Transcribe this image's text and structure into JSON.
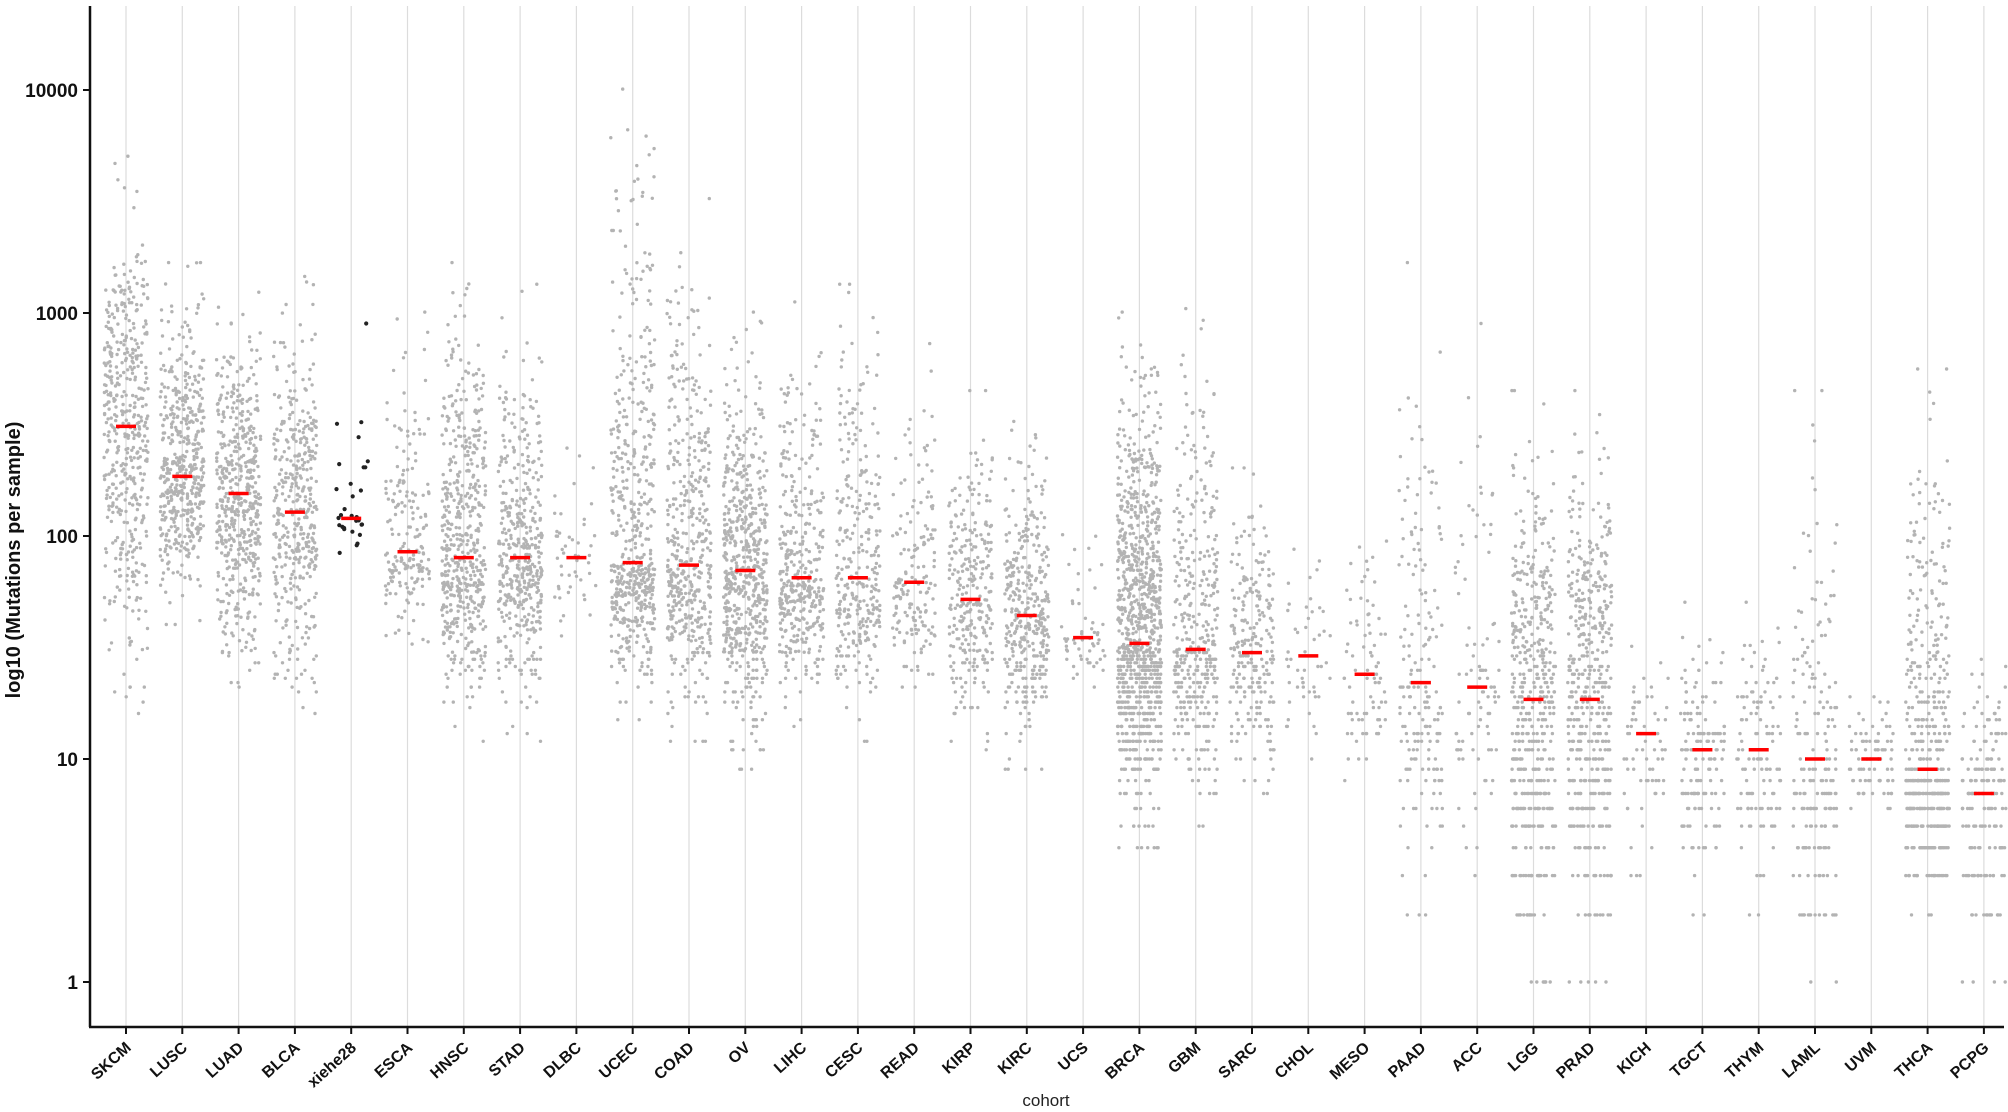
{
  "chart_data": {
    "type": "scatter",
    "title": "",
    "xlabel": "cohort",
    "ylabel": "log10 (Mutations per sample)",
    "y_scale": "log10",
    "ylim": [
      0.5,
      25000
    ],
    "y_ticks": [
      1,
      10,
      100,
      1000,
      10000
    ],
    "y_tick_labels": [
      "1",
      "10",
      "100",
      "1000",
      "10000"
    ],
    "grid": "vertical lines at each cohort",
    "colors": {
      "points": "#b3b3b3",
      "highlight_points": "#222222",
      "median": "#ff0000",
      "grid": "#dcdcdc",
      "axis": "#111111"
    },
    "categories": [
      "SKCM",
      "LUSC",
      "LUAD",
      "BLCA",
      "xiehe28",
      "ESCA",
      "HNSC",
      "STAD",
      "DLBC",
      "UCEC",
      "COAD",
      "OV",
      "LIHC",
      "CESC",
      "READ",
      "KIRP",
      "KIRC",
      "UCS",
      "BRCA",
      "GBM",
      "SARC",
      "CHOL",
      "MESO",
      "PAAD",
      "ACC",
      "LGG",
      "PRAD",
      "KICH",
      "TGCT",
      "THYM",
      "LAML",
      "UVM",
      "THCA",
      "PCPG"
    ],
    "medians": [
      310,
      185,
      155,
      128,
      120,
      85,
      80,
      80,
      80,
      76,
      74,
      70,
      65,
      65,
      62,
      52,
      44,
      35,
      33,
      31,
      30,
      29,
      24,
      22,
      21,
      18.5,
      18.5,
      13,
      11,
      11,
      10,
      10,
      9,
      7
    ],
    "sample_counts": [
      470,
      490,
      515,
      410,
      30,
      185,
      510,
      440,
      48,
      530,
      460,
      600,
      375,
      305,
      165,
      280,
      370,
      57,
      1000,
      390,
      240,
      51,
      82,
      180,
      92,
      515,
      500,
      66,
      150,
      120,
      190,
      80,
      490,
      180
    ],
    "spread_low": [
      18,
      45,
      20,
      15,
      75,
      30,
      14,
      14,
      35,
      17,
      14,
      10,
      16,
      14,
      18,
      12,
      10,
      20,
      4,
      6,
      6,
      8,
      8,
      2,
      3,
      1,
      1,
      3,
      2,
      2,
      1,
      5,
      2,
      1
    ],
    "spread_high": [
      4500,
      1500,
      1400,
      1300,
      800,
      900,
      1500,
      1200,
      280,
      9000,
      3000,
      900,
      1000,
      1200,
      650,
      400,
      300,
      150,
      900,
      1200,
      180,
      200,
      150,
      1500,
      800,
      400,
      400,
      45,
      45,
      45,
      400,
      20,
      500,
      25
    ],
    "highlighted_category": "xiehe28"
  }
}
